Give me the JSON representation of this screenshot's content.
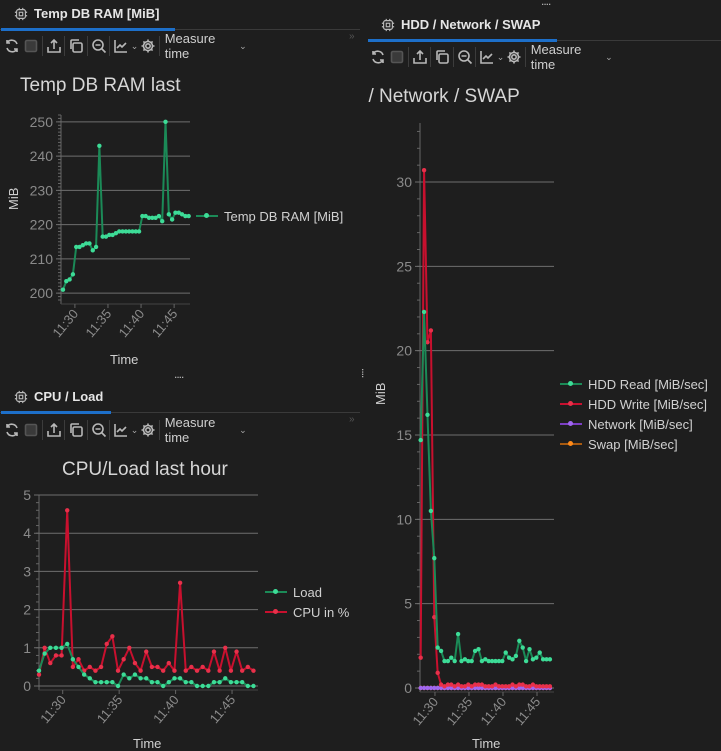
{
  "panels": {
    "ram": {
      "tab": "Temp DB RAM [MiB]",
      "measure": "Measure time"
    },
    "cpu": {
      "tab": "CPU / Load",
      "measure": "Measure time"
    },
    "hdd": {
      "tab": "HDD / Network / SWAP",
      "measure": "Measure time"
    }
  },
  "resize_handle": "....",
  "chart_data": [
    {
      "type": "line",
      "title": "Temp DB RAM last",
      "xlabel": "Time",
      "ylabel": "MiB",
      "ylim": [
        198,
        252
      ],
      "xlim": [
        27.9,
        47.4
      ],
      "yticks": [
        200,
        210,
        220,
        230,
        240,
        250
      ],
      "xticks": [
        {
          "v": 30,
          "label": "11:30"
        },
        {
          "v": 35,
          "label": "11:35"
        },
        {
          "v": 40,
          "label": "11:40"
        },
        {
          "v": 45,
          "label": "11:45"
        }
      ],
      "x_start": 28.2,
      "x_step": 0.5,
      "series": [
        {
          "name": "Temp DB RAM [MiB]",
          "line": "#1b8a57",
          "dot": "#3ddc97",
          "values": [
            201,
            203.5,
            204,
            205.5,
            213.5,
            213.5,
            214,
            214.5,
            214.5,
            212.5,
            213.5,
            243,
            216.5,
            216.5,
            217,
            217,
            217.5,
            218,
            218,
            218,
            218,
            218,
            218,
            218,
            222.5,
            222.5,
            222,
            222,
            222,
            222.5,
            221,
            250,
            223,
            221.5,
            223.5,
            223.5,
            223,
            222.5,
            222.5
          ]
        }
      ]
    },
    {
      "type": "line",
      "title": "CPU/Load last hour",
      "xlabel": "Time",
      "ylabel": "",
      "ylim": [
        0,
        5
      ],
      "xlim": [
        27.9,
        47.3
      ],
      "yticks": [
        0,
        1,
        2,
        3,
        4,
        5
      ],
      "xticks": [
        {
          "v": 30,
          "label": "11:30"
        },
        {
          "v": 35,
          "label": "11:35"
        },
        {
          "v": 40,
          "label": "11:40"
        },
        {
          "v": 45,
          "label": "11:45"
        }
      ],
      "x_start": 27.9,
      "x_step": 0.5,
      "series": [
        {
          "name": "Load",
          "line": "#1b8a57",
          "dot": "#3ddc97",
          "values": [
            0.4,
            0.85,
            1.0,
            1.0,
            1.0,
            1.1,
            0.7,
            0.5,
            0.3,
            0.2,
            0.1,
            0.1,
            0.1,
            0.1,
            0,
            0.3,
            0.2,
            0.3,
            0.2,
            0.2,
            0.1,
            0.1,
            0,
            0.1,
            0.2,
            0.2,
            0.1,
            0.1,
            0,
            0,
            0,
            0.1,
            0.1,
            0.2,
            0.1,
            0.1,
            0.1,
            0,
            0
          ]
        },
        {
          "name": "CPU in %",
          "line": "#c8102e",
          "dot": "#e8304a",
          "values": [
            0.3,
            1.0,
            0.6,
            0.8,
            0.8,
            4.6,
            0.5,
            0.7,
            0.4,
            0.5,
            0.4,
            0.5,
            1.1,
            1.3,
            0.4,
            0.7,
            1.0,
            0.6,
            0.4,
            0.9,
            0.5,
            0.5,
            0.4,
            0.6,
            0.4,
            2.7,
            0.4,
            0.5,
            0.4,
            0.5,
            0.4,
            0.9,
            0.4,
            1.0,
            0.4,
            0.9,
            0.4,
            0.5,
            0.4
          ]
        }
      ]
    },
    {
      "type": "line",
      "title": "HDD / Network / SWAP",
      "xlabel": "Time",
      "ylabel": "MiB",
      "ylim": [
        0,
        33.5
      ],
      "xlim": [
        27.8,
        47.5
      ],
      "yticks": [
        0,
        5,
        10,
        15,
        20,
        25,
        30
      ],
      "xticks": [
        {
          "v": 30,
          "label": "11:30"
        },
        {
          "v": 35,
          "label": "11:35"
        },
        {
          "v": 40,
          "label": "11:40"
        },
        {
          "v": 45,
          "label": "11:45"
        }
      ],
      "x_start": 27.9,
      "x_step": 0.5,
      "series": [
        {
          "name": "HDD Read [MiB/sec]",
          "line": "#1b8a57",
          "dot": "#3ddc97",
          "values": [
            14.7,
            22.3,
            16.2,
            10.5,
            7.7,
            2.4,
            2.2,
            1.6,
            1.6,
            1.8,
            1.6,
            3.2,
            1.6,
            1.7,
            1.6,
            1.6,
            2.2,
            2.3,
            1.6,
            1.7,
            1.6,
            1.6,
            1.6,
            1.6,
            1.6,
            2.1,
            1.8,
            1.7,
            1.9,
            2.8,
            2.4,
            1.6,
            2.3,
            1.7,
            1.8,
            2.1,
            1.7,
            1.7,
            1.7
          ]
        },
        {
          "name": "HDD Write [MiB/sec]",
          "line": "#c8102e",
          "dot": "#e8304a",
          "values": [
            1.8,
            30.7,
            20.5,
            21.2,
            4.2,
            0.9,
            0.2,
            0.1,
            0.2,
            0.2,
            0.1,
            0.2,
            0.1,
            0.1,
            0.2,
            0.1,
            0.2,
            0.2,
            0.2,
            0.1,
            0.1,
            0.1,
            0.2,
            0.1,
            0.1,
            0.1,
            0.1,
            0.2,
            0.1,
            0.2,
            0.2,
            0.1,
            0.1,
            0.2,
            0.1,
            0.1,
            0.1,
            0.1,
            0.1
          ]
        },
        {
          "name": "Network [MiB/sec]",
          "line": "#7b3fc4",
          "dot": "#a066f0",
          "values": [
            0,
            0,
            0,
            0,
            0,
            0,
            0,
            0,
            0,
            0,
            0,
            0,
            0,
            0,
            0,
            0,
            0,
            0,
            0,
            0,
            0,
            0,
            0,
            0,
            0,
            0,
            0,
            0,
            0,
            0,
            0,
            0,
            0,
            0,
            0,
            0,
            0,
            0,
            0
          ]
        },
        {
          "name": "Swap [MiB/sec]",
          "line": "#a85a10",
          "dot": "#ff8a1a",
          "values": [
            0,
            0,
            0,
            0,
            0,
            0,
            0,
            0,
            0,
            0,
            0,
            0,
            0,
            0,
            0,
            0,
            0,
            0,
            0,
            0,
            0,
            0,
            0,
            0,
            0,
            0,
            0,
            0,
            0,
            0,
            0,
            0,
            0,
            0,
            0,
            0,
            0,
            0,
            0
          ]
        }
      ]
    }
  ]
}
